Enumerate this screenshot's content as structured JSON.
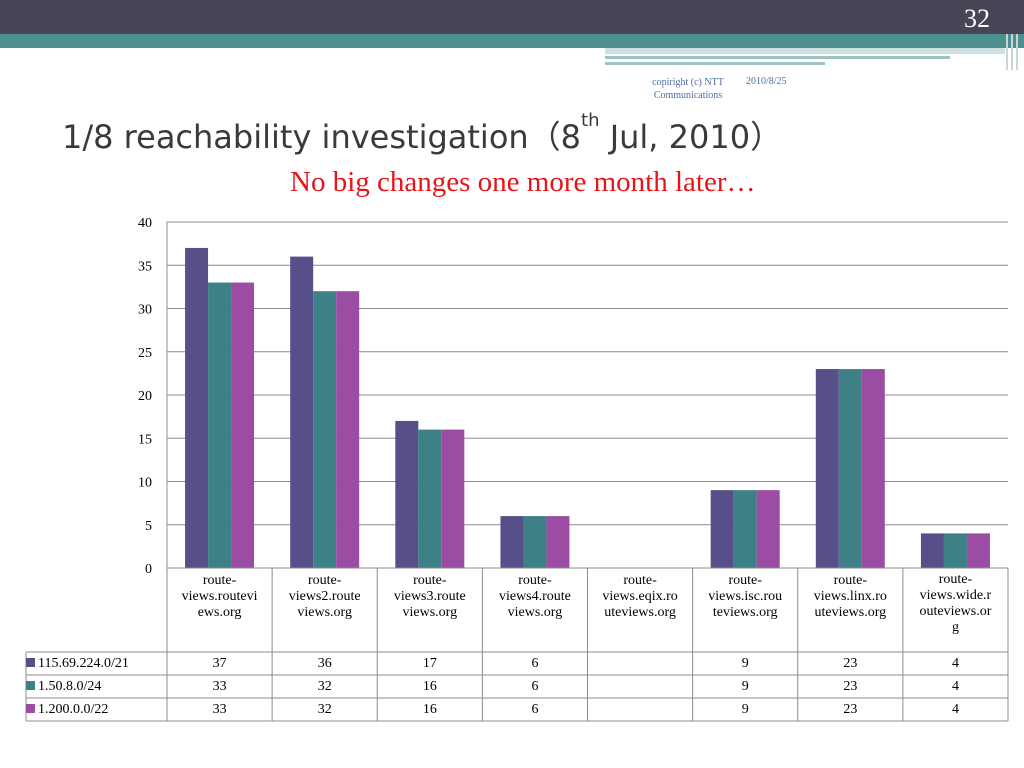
{
  "slide": {
    "page_number": "32",
    "copyright": "copiright (c) NTT Communications",
    "date": "2010/8/25",
    "title_main": "1/8 reachability investigation（8",
    "title_sup": "th",
    "title_end": " Jul, 2010）",
    "subtitle": "No big changes one more month later…"
  },
  "chart_data": {
    "type": "bar",
    "categories": [
      "route-views.routeviews.org",
      "route-views2.routeviews.org",
      "route-views3.routeviews.org",
      "route-views4.routeviews.org",
      "route-views.eqix.routeviews.org",
      "route-views.isc.routeviews.org",
      "route-views.linx.routeviews.org",
      "route-views.wide.routeviews.org"
    ],
    "category_labels": [
      [
        "route-",
        "views.routevi",
        "ews.org"
      ],
      [
        "route-",
        "views2.route",
        "views.org"
      ],
      [
        "route-",
        "views3.route",
        "views.org"
      ],
      [
        "route-",
        "views4.route",
        "views.org"
      ],
      [
        "route-",
        "views.eqix.ro",
        "uteviews.org"
      ],
      [
        "route-",
        "views.isc.rou",
        "teviews.org"
      ],
      [
        "route-",
        "views.linx.ro",
        "uteviews.org"
      ],
      [
        "route-",
        "views.wide.r",
        "outeviews.or",
        "g"
      ]
    ],
    "series": [
      {
        "name": "115.69.224.0/21",
        "color": "#564f89",
        "values": [
          37,
          36,
          17,
          6,
          null,
          9,
          23,
          4
        ]
      },
      {
        "name": "1.50.8.0/24",
        "color": "#3d8187",
        "values": [
          33,
          32,
          16,
          6,
          null,
          9,
          23,
          4
        ]
      },
      {
        "name": "1.200.0.0/22",
        "color": "#9b4da3",
        "values": [
          33,
          32,
          16,
          6,
          null,
          9,
          23,
          4
        ]
      }
    ],
    "ylim": [
      0,
      40
    ],
    "yticks": [
      0,
      5,
      10,
      15,
      20,
      25,
      30,
      35,
      40
    ],
    "grid": true,
    "legend": "data-table"
  }
}
